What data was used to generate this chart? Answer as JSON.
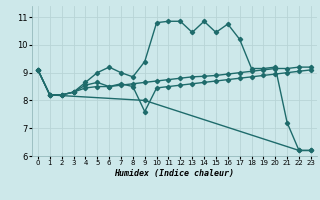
{
  "xlabel": "Humidex (Indice chaleur)",
  "bg_color": "#cde8ea",
  "grid_color": "#b8d4d6",
  "line_color": "#1e6b6b",
  "xlim": [
    -0.5,
    23.5
  ],
  "ylim": [
    6,
    11.4
  ],
  "yticks": [
    6,
    7,
    8,
    9,
    10,
    11
  ],
  "xticks": [
    0,
    1,
    2,
    3,
    4,
    5,
    6,
    7,
    8,
    9,
    10,
    11,
    12,
    13,
    14,
    15,
    16,
    17,
    18,
    19,
    20,
    21,
    22,
    23
  ],
  "lines": [
    {
      "x": [
        0,
        1,
        2,
        3,
        4,
        5,
        6,
        7,
        8,
        9,
        10,
        11,
        12,
        13,
        14,
        15,
        16,
        17,
        18,
        19,
        20,
        21,
        22,
        23
      ],
      "y": [
        9.1,
        8.2,
        8.2,
        8.3,
        8.65,
        9.0,
        9.2,
        9.0,
        8.85,
        9.4,
        10.8,
        10.85,
        10.85,
        10.45,
        10.85,
        10.45,
        10.75,
        10.2,
        9.15,
        9.15,
        9.2,
        7.2,
        6.2,
        6.2
      ]
    },
    {
      "x": [
        0,
        1,
        9,
        22,
        23
      ],
      "y": [
        9.1,
        8.2,
        8.0,
        6.2,
        6.2
      ]
    },
    {
      "x": [
        0,
        1,
        2,
        3,
        4,
        5,
        6,
        7,
        8,
        9,
        10,
        11,
        12,
        13,
        14,
        15,
        16,
        17,
        18,
        19,
        20,
        21,
        22,
        23
      ],
      "y": [
        9.1,
        8.2,
        8.2,
        8.3,
        8.45,
        8.5,
        8.5,
        8.55,
        8.6,
        8.65,
        8.7,
        8.75,
        8.8,
        8.85,
        8.87,
        8.9,
        8.95,
        9.0,
        9.05,
        9.1,
        9.15,
        9.15,
        9.2,
        9.2
      ]
    },
    {
      "x": [
        0,
        1,
        2,
        3,
        4,
        5,
        6,
        7,
        8,
        9,
        10,
        11,
        12,
        13,
        14,
        15,
        16,
        17,
        18,
        19,
        20,
        21,
        22,
        23
      ],
      "y": [
        9.1,
        8.2,
        8.2,
        8.3,
        8.55,
        8.65,
        8.5,
        8.6,
        8.5,
        7.6,
        8.45,
        8.5,
        8.55,
        8.6,
        8.65,
        8.7,
        8.75,
        8.8,
        8.85,
        8.9,
        8.95,
        9.0,
        9.05,
        9.1
      ]
    }
  ]
}
